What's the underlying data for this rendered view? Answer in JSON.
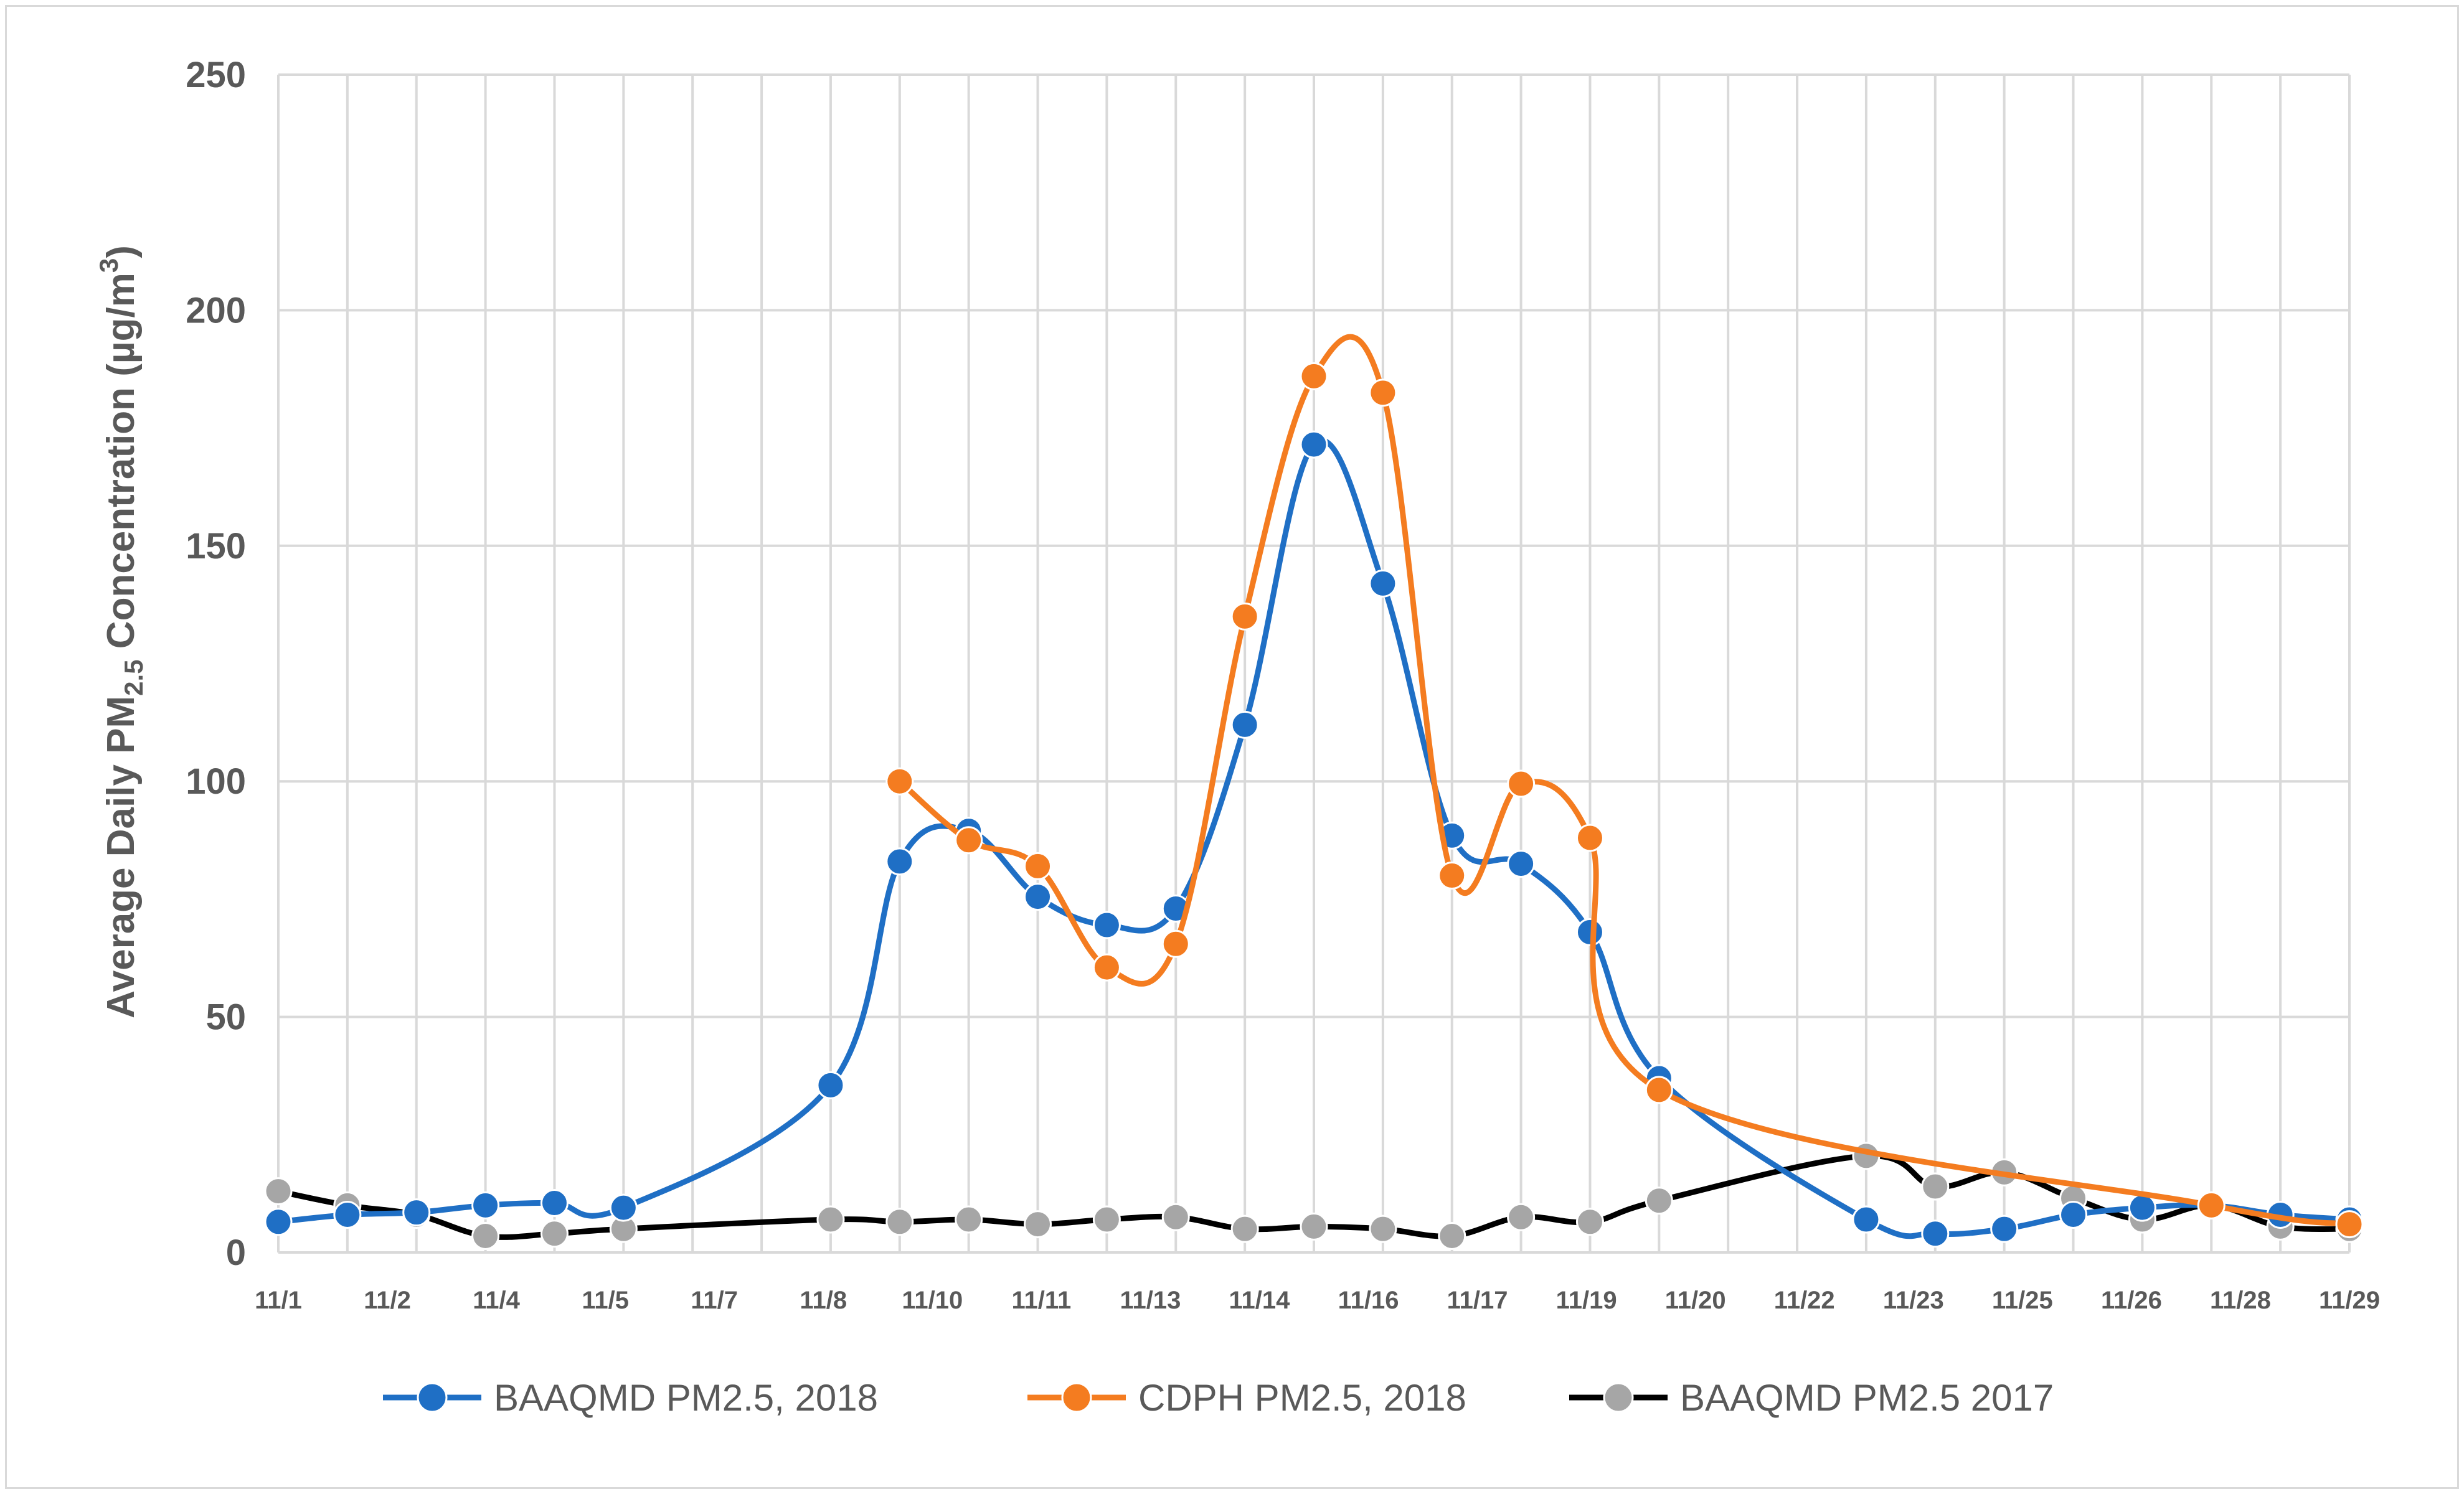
{
  "chart_data": {
    "type": "line",
    "ylabel": {
      "prefix": "Average Daily PM",
      "subscript": "2.5",
      "middle": " Concentration (µg/m",
      "superscript": "3",
      "suffix": ")"
    },
    "ylim": [
      0,
      250
    ],
    "yticks": [
      0,
      50,
      100,
      150,
      200,
      250
    ],
    "x_tick_labels": [
      "11/1",
      "11/2",
      "11/4",
      "11/5",
      "11/7",
      "11/8",
      "11/10",
      "11/11",
      "11/13",
      "11/14",
      "11/16",
      "11/17",
      "11/19",
      "11/20",
      "11/22",
      "11/23",
      "11/25",
      "11/26",
      "11/28",
      "11/29"
    ],
    "grid": true,
    "legend_position": "bottom",
    "series": [
      {
        "name": "BAAQMD PM2.5, 2018",
        "color": "#1f6fc5",
        "points": [
          [
            1,
            6.5
          ],
          [
            2,
            8
          ],
          [
            3,
            8.5
          ],
          [
            4,
            10
          ],
          [
            5,
            10.5
          ],
          [
            6,
            9.5
          ],
          [
            9,
            35.5
          ],
          [
            10,
            83
          ],
          [
            11,
            89.5
          ],
          [
            12,
            75.5
          ],
          [
            13,
            69.5
          ],
          [
            14,
            73
          ],
          [
            15,
            112
          ],
          [
            16,
            171.5
          ],
          [
            17,
            142
          ],
          [
            18,
            88.5
          ],
          [
            19,
            82.5
          ],
          [
            20,
            68
          ],
          [
            21,
            37
          ],
          [
            24,
            7
          ],
          [
            25,
            4
          ],
          [
            26,
            5
          ],
          [
            27,
            8
          ],
          [
            28,
            9.5
          ],
          [
            29,
            10
          ],
          [
            30,
            8
          ],
          [
            31,
            7
          ]
        ]
      },
      {
        "name": "CDPH PM2.5, 2018",
        "color": "#f47c20",
        "points": [
          [
            10,
            100
          ],
          [
            11,
            87.5
          ],
          [
            12,
            82
          ],
          [
            13,
            60.5
          ],
          [
            14,
            65.5
          ],
          [
            15,
            135
          ],
          [
            16,
            186
          ],
          [
            17,
            182.5
          ],
          [
            18,
            80
          ],
          [
            19,
            99.5
          ],
          [
            20,
            88
          ],
          [
            21,
            34.5
          ],
          [
            29,
            10
          ],
          [
            31,
            6
          ]
        ]
      },
      {
        "name": "BAAQMD PM2.5 2017",
        "color": "#000000",
        "marker_color": "#a6a6a6",
        "points": [
          [
            1,
            13
          ],
          [
            2,
            10
          ],
          [
            3,
            8
          ],
          [
            4,
            3.5
          ],
          [
            5,
            4
          ],
          [
            6,
            5
          ],
          [
            9,
            7
          ],
          [
            10,
            6.5
          ],
          [
            11,
            7
          ],
          [
            12,
            6
          ],
          [
            13,
            7
          ],
          [
            14,
            7.5
          ],
          [
            15,
            5
          ],
          [
            16,
            5.5
          ],
          [
            17,
            5
          ],
          [
            18,
            3.5
          ],
          [
            19,
            7.5
          ],
          [
            20,
            6.5
          ],
          [
            21,
            11
          ],
          [
            24,
            20.5
          ],
          [
            25,
            14
          ],
          [
            26,
            17
          ],
          [
            27,
            11.5
          ],
          [
            28,
            7
          ],
          [
            29,
            10
          ],
          [
            30,
            5.5
          ],
          [
            31,
            5
          ]
        ]
      }
    ]
  }
}
